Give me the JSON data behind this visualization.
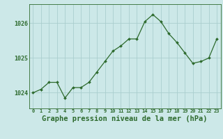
{
  "x": [
    0,
    1,
    2,
    3,
    4,
    5,
    6,
    7,
    8,
    9,
    10,
    11,
    12,
    13,
    14,
    15,
    16,
    17,
    18,
    19,
    20,
    21,
    22,
    23
  ],
  "y": [
    1024.0,
    1024.1,
    1024.3,
    1024.3,
    1023.85,
    1024.15,
    1024.15,
    1024.3,
    1024.6,
    1024.9,
    1025.2,
    1025.35,
    1025.55,
    1025.55,
    1026.05,
    1026.25,
    1026.05,
    1025.7,
    1025.45,
    1025.15,
    1024.85,
    1024.9,
    1025.0,
    1025.55
  ],
  "line_color": "#2d6a2d",
  "marker": "D",
  "marker_size": 2.0,
  "bg_color": "#cce8e8",
  "grid_color": "#aacece",
  "tick_color": "#2d6a2d",
  "label_color": "#2d6a2d",
  "xlabel": "Graphe pression niveau de la mer (hPa)",
  "ytick_labels": [
    "1024",
    "1025",
    "1026"
  ],
  "ytick_vals": [
    1024,
    1025,
    1026
  ],
  "xtick_labels": [
    "0",
    "1",
    "2",
    "3",
    "4",
    "5",
    "6",
    "7",
    "8",
    "9",
    "10",
    "11",
    "12",
    "13",
    "14",
    "15",
    "16",
    "17",
    "18",
    "19",
    "20",
    "21",
    "22",
    "23"
  ],
  "xlim": [
    -0.5,
    23.5
  ],
  "ylim": [
    1023.55,
    1026.55
  ],
  "xlabel_fontsize": 7.5,
  "xtick_fontsize": 5.0,
  "ytick_fontsize": 6.0
}
